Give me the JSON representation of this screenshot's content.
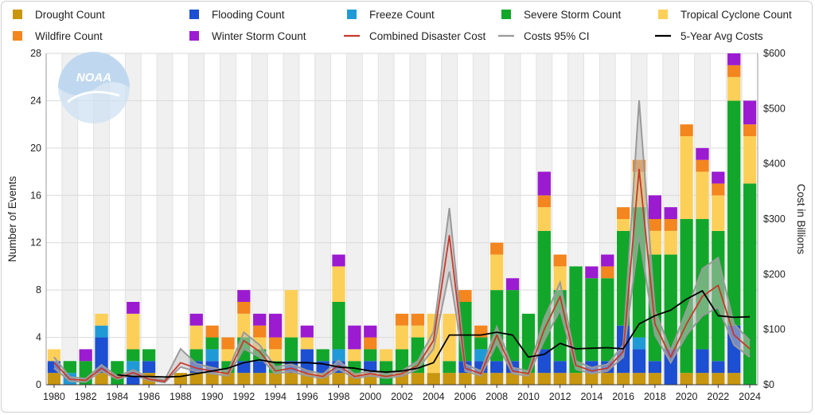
{
  "chart_data": {
    "type": "bar",
    "stacked": true,
    "x": [
      1980,
      1981,
      1982,
      1983,
      1984,
      1985,
      1986,
      1987,
      1988,
      1989,
      1990,
      1991,
      1992,
      1993,
      1994,
      1995,
      1996,
      1997,
      1998,
      1999,
      2000,
      2001,
      2002,
      2003,
      2004,
      2005,
      2006,
      2007,
      2008,
      2009,
      2010,
      2011,
      2012,
      2013,
      2014,
      2015,
      2016,
      2017,
      2018,
      2019,
      2020,
      2021,
      2022,
      2023,
      2024
    ],
    "series": [
      {
        "name": "Drought Count",
        "color": "#c8960f",
        "kind": "bar",
        "values": [
          1,
          0,
          0,
          1,
          0,
          0,
          1,
          0,
          1,
          1,
          1,
          1,
          1,
          1,
          1,
          1,
          1,
          1,
          1,
          1,
          1,
          0,
          1,
          1,
          1,
          1,
          1,
          1,
          1,
          1,
          1,
          1,
          1,
          1,
          1,
          1,
          1,
          1,
          1,
          0,
          1,
          1,
          1,
          1,
          0
        ]
      },
      {
        "name": "Flooding Count",
        "color": "#1c4fd1",
        "kind": "bar",
        "values": [
          1,
          0,
          0,
          3,
          0,
          1,
          1,
          0,
          0,
          1,
          1,
          0,
          1,
          1,
          0,
          1,
          2,
          1,
          1,
          0,
          1,
          0,
          0,
          0,
          0,
          0,
          1,
          1,
          1,
          1,
          0,
          2,
          1,
          0,
          1,
          1,
          4,
          2,
          1,
          3,
          0,
          2,
          1,
          4,
          0
        ]
      },
      {
        "name": "Freeze Count",
        "color": "#1f9ad6",
        "kind": "bar",
        "values": [
          0,
          1,
          0,
          1,
          0,
          1,
          0,
          0,
          0,
          0,
          1,
          0,
          0,
          0,
          0,
          0,
          0,
          0,
          1,
          0,
          0,
          0,
          0,
          0,
          0,
          0,
          0,
          1,
          0,
          0,
          0,
          0,
          0,
          0,
          0,
          0,
          0,
          1,
          0,
          0,
          0,
          0,
          0,
          0,
          0
        ]
      },
      {
        "name": "Severe Storm Count",
        "color": "#12a72a",
        "kind": "bar",
        "values": [
          0,
          1,
          2,
          0,
          2,
          1,
          1,
          0,
          0,
          1,
          1,
          1,
          2,
          1,
          1,
          2,
          0,
          1,
          4,
          1,
          1,
          2,
          2,
          3,
          0,
          1,
          5,
          1,
          6,
          6,
          5,
          10,
          6,
          9,
          7,
          7,
          8,
          11,
          9,
          8,
          13,
          11,
          11,
          19,
          17
        ]
      },
      {
        "name": "Tropical Cyclone Count",
        "color": "#fcd058",
        "kind": "bar",
        "values": [
          1,
          0,
          0,
          1,
          0,
          3,
          0,
          0,
          0,
          2,
          0,
          1,
          2,
          1,
          1,
          4,
          1,
          0,
          3,
          1,
          0,
          1,
          2,
          1,
          5,
          4,
          0,
          0,
          3,
          0,
          0,
          2,
          2,
          0,
          0,
          0,
          1,
          3,
          2,
          2,
          7,
          4,
          3,
          2,
          4
        ]
      },
      {
        "name": "Wildfire Count",
        "color": "#f3861e",
        "kind": "bar",
        "values": [
          0,
          0,
          0,
          0,
          0,
          0,
          0,
          0,
          0,
          0,
          1,
          1,
          1,
          1,
          1,
          0,
          0,
          0,
          0,
          0,
          1,
          0,
          1,
          1,
          0,
          0,
          1,
          1,
          1,
          0,
          0,
          1,
          1,
          0,
          0,
          1,
          1,
          1,
          1,
          1,
          1,
          1,
          1,
          1,
          1
        ]
      },
      {
        "name": "Winter Storm Count",
        "color": "#9b1bd0",
        "kind": "bar",
        "values": [
          0,
          0,
          1,
          0,
          0,
          1,
          0,
          0,
          0,
          1,
          0,
          0,
          1,
          1,
          2,
          0,
          1,
          0,
          1,
          2,
          1,
          0,
          0,
          0,
          0,
          0,
          0,
          0,
          0,
          1,
          0,
          2,
          0,
          0,
          1,
          1,
          0,
          0,
          2,
          1,
          0,
          1,
          1,
          1,
          2
        ]
      },
      {
        "name": "Combined Disaster Cost",
        "color": "#c8382a",
        "kind": "line",
        "values": [
          40,
          10,
          8,
          30,
          12,
          22,
          10,
          6,
          40,
          30,
          25,
          20,
          80,
          60,
          25,
          30,
          20,
          15,
          35,
          15,
          20,
          15,
          20,
          35,
          80,
          270,
          30,
          20,
          90,
          25,
          20,
          100,
          160,
          35,
          25,
          30,
          60,
          390,
          110,
          50,
          110,
          160,
          180,
          90,
          65
        ]
      },
      {
        "name": "Costs 95% CI",
        "color": "#9a9a9a",
        "kind": "band",
        "lower": [
          30,
          6,
          5,
          25,
          10,
          18,
          8,
          4,
          32,
          24,
          20,
          16,
          65,
          50,
          20,
          24,
          16,
          12,
          28,
          12,
          16,
          12,
          16,
          28,
          65,
          205,
          25,
          16,
          75,
          20,
          16,
          80,
          135,
          28,
          20,
          25,
          50,
          270,
          90,
          40,
          90,
          125,
          140,
          72,
          50
        ],
        "upper": [
          50,
          14,
          11,
          36,
          15,
          27,
          13,
          9,
          65,
          38,
          31,
          25,
          95,
          72,
          32,
          37,
          26,
          19,
          44,
          19,
          25,
          19,
          25,
          43,
          96,
          320,
          37,
          25,
          105,
          31,
          25,
          120,
          185,
          43,
          31,
          37,
          72,
          515,
          135,
          62,
          135,
          210,
          230,
          110,
          80
        ]
      },
      {
        "name": "5-Year Avg Costs",
        "color": "#000000",
        "kind": "line",
        "values": [
          null,
          null,
          null,
          null,
          18,
          15,
          15,
          14,
          15,
          20,
          25,
          30,
          40,
          45,
          40,
          40,
          40,
          38,
          32,
          30,
          25,
          23,
          25,
          30,
          40,
          90,
          90,
          90,
          95,
          90,
          50,
          55,
          75,
          65,
          66,
          67,
          65,
          110,
          125,
          135,
          155,
          170,
          125,
          122,
          123
        ]
      }
    ],
    "y_left": {
      "label": "Number of Events",
      "min": 0,
      "max": 28,
      "ticks": [
        0,
        4,
        8,
        12,
        16,
        20,
        24,
        28
      ]
    },
    "y_right": {
      "label": "Cost in Billions",
      "min": 0,
      "max": 600,
      "ticks": [
        "$0",
        "$100",
        "$200",
        "$300",
        "$400",
        "$500",
        "$600"
      ]
    },
    "x_ticks": [
      1980,
      1982,
      1984,
      1986,
      1988,
      1990,
      1992,
      1994,
      1996,
      1998,
      2000,
      2002,
      2004,
      2006,
      2008,
      2010,
      2012,
      2014,
      2016,
      2018,
      2020,
      2022,
      2024
    ],
    "legend_position": "top",
    "grid": true,
    "alternating_column_shading": true
  },
  "watermark": {
    "text": "NOAA"
  }
}
